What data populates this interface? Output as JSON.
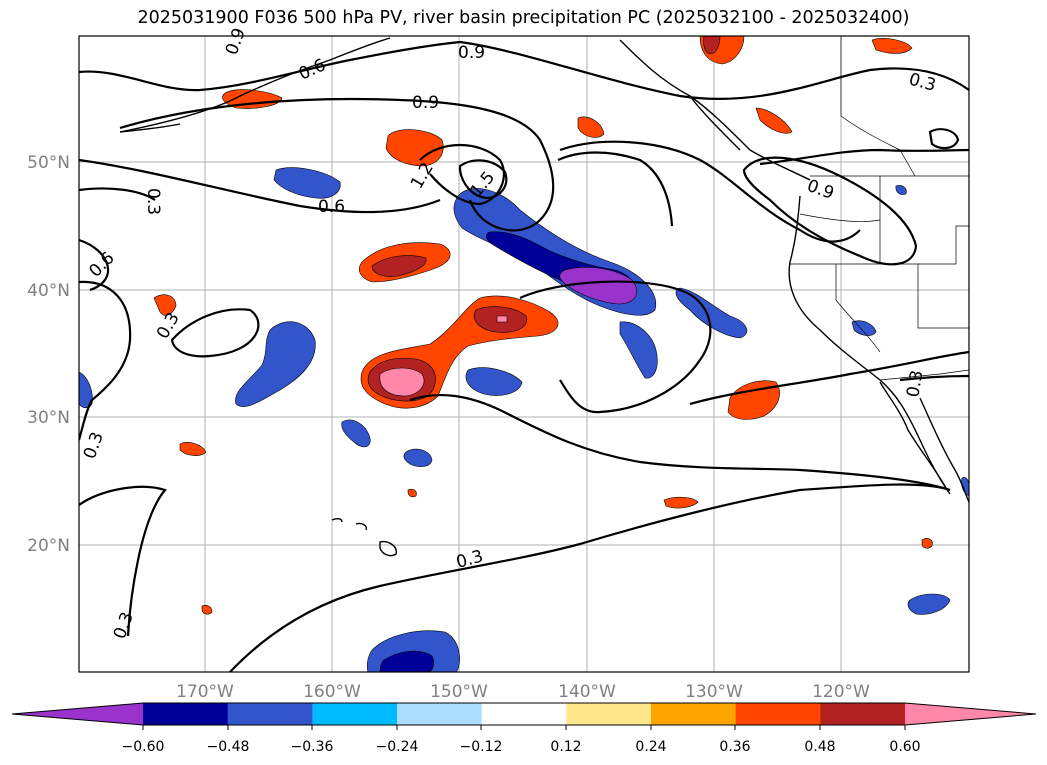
{
  "title": "2025031900 F036 500 hPa PV, river basin precipitation PC (2025032100 - 2025032400)",
  "lat_labels": [
    "50°N",
    "40°N",
    "30°N",
    "20°N"
  ],
  "lon_labels": [
    "170°W",
    "160°W",
    "150°W",
    "140°W",
    "130°W",
    "120°W"
  ],
  "contour_labels": [
    "0.9",
    "0.9",
    "0.6",
    "0.6",
    "0.3",
    "0.3",
    "0.3",
    "0.3",
    "0.3",
    "0.3",
    "0.6",
    "1.2",
    "1.5",
    "0.9",
    "0.9",
    "0.3"
  ],
  "colorbar": {
    "colors": [
      "#9933cc",
      "#000099",
      "#3355cc",
      "#00bbff",
      "#aaddff",
      "#ffffff",
      "#ffe98c",
      "#ffa500",
      "#ff4500",
      "#b22222",
      "#ff88aa"
    ],
    "tick_labels": [
      "−0.60",
      "−0.48",
      "−0.36",
      "−0.24",
      "−0.12",
      "0.12",
      "0.24",
      "0.36",
      "0.48",
      "0.60"
    ]
  }
}
